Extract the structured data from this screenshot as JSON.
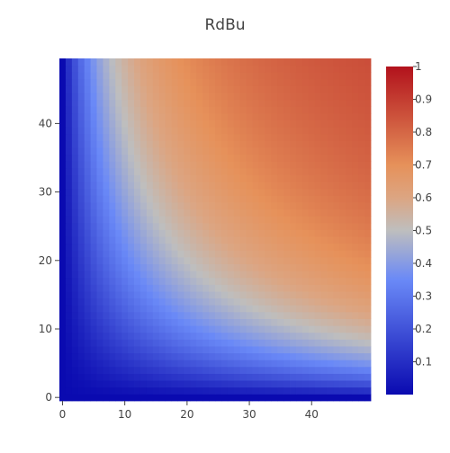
{
  "chart_data": {
    "type": "heatmap",
    "title": "RdBu",
    "xlabel": "",
    "ylabel": "",
    "x_range": [
      0,
      49
    ],
    "y_range": [
      0,
      49
    ],
    "x_ticks": [
      0,
      10,
      20,
      30,
      40
    ],
    "y_ticks": [
      0,
      10,
      20,
      30,
      40
    ],
    "z_formula": "1 - 1/(1 + x*y/400)",
    "z_range": [
      0,
      1
    ],
    "colorscale": [
      [
        0.0,
        "#0a0ab0"
      ],
      [
        0.35,
        "#6a89f7"
      ],
      [
        0.5,
        "#bebebe"
      ],
      [
        0.6,
        "#dca582"
      ],
      [
        0.7,
        "#e6915a"
      ],
      [
        1.0,
        "#b2121c"
      ]
    ],
    "colorbar_ticks": [
      "0.1",
      "0.2",
      "0.3",
      "0.4",
      "0.5",
      "0.6",
      "0.7",
      "0.8",
      "0.9",
      "1"
    ],
    "grid": false,
    "colorbar": "right"
  }
}
